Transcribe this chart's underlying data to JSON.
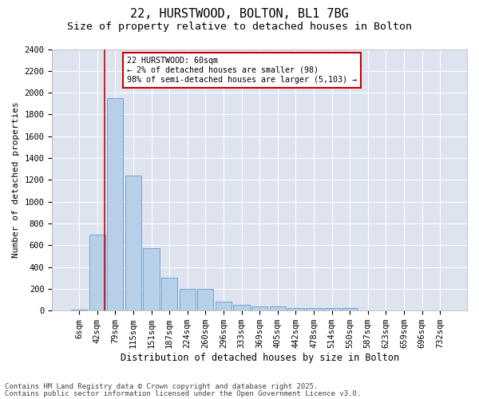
{
  "title1": "22, HURSTWOOD, BOLTON, BL1 7BG",
  "title2": "Size of property relative to detached houses in Bolton",
  "xlabel": "Distribution of detached houses by size in Bolton",
  "ylabel": "Number of detached properties",
  "categories": [
    "6sqm",
    "42sqm",
    "79sqm",
    "115sqm",
    "151sqm",
    "187sqm",
    "224sqm",
    "260sqm",
    "296sqm",
    "333sqm",
    "369sqm",
    "405sqm",
    "442sqm",
    "478sqm",
    "514sqm",
    "550sqm",
    "587sqm",
    "623sqm",
    "659sqm",
    "696sqm",
    "732sqm"
  ],
  "values": [
    10,
    700,
    1950,
    1240,
    570,
    300,
    200,
    200,
    85,
    50,
    40,
    40,
    25,
    25,
    25,
    20,
    5,
    2,
    1,
    0,
    0
  ],
  "bar_color": "#b8cfe8",
  "bar_edge_color": "#6699cc",
  "background_color": "#dde4f0",
  "grid_color": "#ffffff",
  "red_line_x": 1.43,
  "annotation_text": "22 HURSTWOOD: 60sqm\n← 2% of detached houses are smaller (98)\n98% of semi-detached houses are larger (5,103) →",
  "annotation_box_color": "#ffffff",
  "annotation_box_edge": "#cc0000",
  "footnote1": "Contains HM Land Registry data © Crown copyright and database right 2025.",
  "footnote2": "Contains public sector information licensed under the Open Government Licence v3.0.",
  "ylim": [
    0,
    2400
  ],
  "yticks": [
    0,
    200,
    400,
    600,
    800,
    1000,
    1200,
    1400,
    1600,
    1800,
    2000,
    2200,
    2400
  ],
  "title1_fontsize": 11,
  "title2_fontsize": 9.5,
  "xlabel_fontsize": 8.5,
  "ylabel_fontsize": 8,
  "tick_fontsize": 7.5,
  "footnote_fontsize": 6.5,
  "fig_bg": "#ffffff"
}
